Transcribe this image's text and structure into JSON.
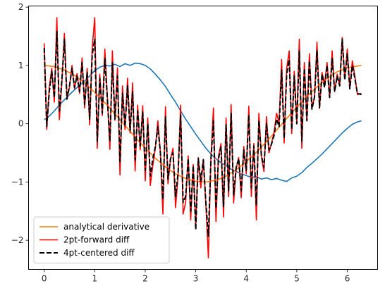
{
  "chart_data": {
    "type": "line",
    "title": "",
    "xlabel": "",
    "ylabel": "",
    "xlim": [
      -0.31,
      6.6
    ],
    "ylim": [
      -2.5,
      2.02
    ],
    "x_ticks": [
      0,
      1,
      2,
      3,
      4,
      5,
      6
    ],
    "y_ticks": [
      -2,
      -1,
      0,
      1,
      2
    ],
    "x_tick_labels": [
      "0",
      "1",
      "2",
      "3",
      "4",
      "5",
      "6"
    ],
    "y_tick_labels": [
      "−2",
      "−1",
      "0",
      "1",
      "2"
    ],
    "grid": false,
    "legend_position": "lower-left",
    "series": [
      {
        "name": "",
        "color": "#1f77b4",
        "dashed": false,
        "x": [
          0,
          0.1,
          0.2,
          0.3,
          0.4,
          0.5,
          0.6,
          0.7,
          0.8,
          0.9,
          1.0,
          1.1,
          1.2,
          1.3,
          1.4,
          1.5,
          1.6,
          1.7,
          1.8,
          1.9,
          2.0,
          2.1,
          2.2,
          2.3,
          2.4,
          2.5,
          2.6,
          2.7,
          2.8,
          2.9,
          3.0,
          3.1,
          3.2,
          3.3,
          3.4,
          3.5,
          3.6,
          3.7,
          3.8,
          3.9,
          4.0,
          4.1,
          4.2,
          4.3,
          4.4,
          4.5,
          4.6,
          4.7,
          4.8,
          4.9,
          5.0,
          5.1,
          5.2,
          5.3,
          5.4,
          5.5,
          5.6,
          5.7,
          5.8,
          5.9,
          6.0,
          6.1,
          6.2,
          6.28
        ],
        "y": [
          0.07,
          0.13,
          0.22,
          0.32,
          0.41,
          0.5,
          0.58,
          0.66,
          0.73,
          0.82,
          0.91,
          0.97,
          1.0,
          0.99,
          1.02,
          0.98,
          1.03,
          1.0,
          1.04,
          1.03,
          1.0,
          0.94,
          0.85,
          0.75,
          0.64,
          0.5,
          0.37,
          0.22,
          0.08,
          -0.05,
          -0.18,
          -0.3,
          -0.42,
          -0.52,
          -0.6,
          -0.67,
          -0.72,
          -0.78,
          -0.82,
          -0.86,
          -0.89,
          -0.92,
          -0.91,
          -0.95,
          -0.93,
          -0.96,
          -0.94,
          -0.97,
          -0.99,
          -0.93,
          -0.9,
          -0.84,
          -0.75,
          -0.68,
          -0.6,
          -0.52,
          -0.43,
          -0.34,
          -0.25,
          -0.16,
          -0.08,
          -0.01,
          0.03,
          0.05
        ]
      },
      {
        "name": "analytical derivative",
        "color": "#ff7f0e",
        "dashed": false,
        "x": [
          0,
          0.2,
          0.4,
          0.6,
          0.8,
          1.0,
          1.2,
          1.4,
          1.6,
          1.8,
          2.0,
          2.2,
          2.4,
          2.6,
          2.8,
          3.0,
          3.2,
          3.4,
          3.6,
          3.8,
          4.0,
          4.2,
          4.4,
          4.6,
          4.8,
          5.0,
          5.2,
          5.4,
          5.6,
          5.8,
          6.0,
          6.28
        ],
        "y": [
          1.0,
          0.98,
          0.92,
          0.83,
          0.7,
          0.54,
          0.36,
          0.17,
          -0.03,
          -0.23,
          -0.42,
          -0.59,
          -0.74,
          -0.86,
          -0.94,
          -0.99,
          -1.0,
          -0.97,
          -0.9,
          -0.79,
          -0.65,
          -0.49,
          -0.31,
          -0.11,
          0.09,
          0.28,
          0.47,
          0.63,
          0.78,
          0.89,
          0.96,
          1.0
        ]
      },
      {
        "name": "2pt-forward diff",
        "color": "#ff0000",
        "dashed": false,
        "x": [
          0,
          0.05,
          0.1,
          0.15,
          0.2,
          0.25,
          0.3,
          0.35,
          0.4,
          0.45,
          0.5,
          0.55,
          0.6,
          0.65,
          0.7,
          0.75,
          0.8,
          0.85,
          0.9,
          0.95,
          1.0,
          1.05,
          1.1,
          1.15,
          1.2,
          1.25,
          1.3,
          1.35,
          1.4,
          1.45,
          1.5,
          1.55,
          1.6,
          1.65,
          1.7,
          1.75,
          1.8,
          1.85,
          1.9,
          1.95,
          2.0,
          2.05,
          2.1,
          2.15,
          2.2,
          2.25,
          2.3,
          2.35,
          2.4,
          2.45,
          2.5,
          2.55,
          2.6,
          2.65,
          2.7,
          2.75,
          2.8,
          2.85,
          2.9,
          2.95,
          3.0,
          3.05,
          3.1,
          3.15,
          3.2,
          3.25,
          3.3,
          3.35,
          3.4,
          3.45,
          3.5,
          3.55,
          3.6,
          3.65,
          3.7,
          3.75,
          3.8,
          3.85,
          3.9,
          3.95,
          4.0,
          4.05,
          4.1,
          4.15,
          4.2,
          4.25,
          4.3,
          4.35,
          4.4,
          4.45,
          4.5,
          4.55,
          4.6,
          4.65,
          4.7,
          4.75,
          4.8,
          4.85,
          4.9,
          4.95,
          5.0,
          5.05,
          5.1,
          5.15,
          5.2,
          5.25,
          5.3,
          5.35,
          5.4,
          5.45,
          5.5,
          5.55,
          5.6,
          5.65,
          5.7,
          5.75,
          5.8,
          5.85,
          5.9,
          5.95,
          6.0,
          6.05,
          6.1,
          6.15,
          6.2,
          6.28
        ],
        "y": [
          1.38,
          -0.1,
          0.62,
          0.95,
          0.37,
          1.82,
          0.07,
          0.72,
          1.55,
          0.44,
          0.62,
          1.0,
          0.6,
          0.86,
          0.52,
          1.13,
          0.27,
          0.95,
          -0.02,
          1.3,
          1.82,
          -0.42,
          0.85,
          0.14,
          1.28,
          0.47,
          -0.44,
          1.25,
          0.06,
          0.96,
          -0.88,
          0.65,
          -0.1,
          0.78,
          -0.16,
          0.7,
          -0.81,
          0.32,
          -0.45,
          0.31,
          -0.98,
          0.1,
          -1.06,
          -0.72,
          -0.42,
          0.05,
          -0.49,
          -1.55,
          0.29,
          -1.03,
          -0.61,
          -0.42,
          -1.44,
          -0.9,
          0.32,
          -1.55,
          -1.35,
          -0.55,
          -1.65,
          -0.7,
          -1.74,
          -0.58,
          -1.1,
          -0.61,
          -1.38,
          -2.3,
          -0.6,
          0.27,
          -1.68,
          -0.56,
          -0.34,
          -1.6,
          0.1,
          -1.25,
          0.33,
          -1.36,
          -0.77,
          -0.58,
          -1.27,
          -0.39,
          -0.86,
          0.3,
          -1.25,
          -0.34,
          -1.65,
          0.18,
          -0.57,
          -0.82,
          0.12,
          -0.5,
          -0.33,
          -0.15,
          0.18,
          0.02,
          1.1,
          -0.33,
          0.95,
          1.25,
          -0.17,
          0.9,
          0.03,
          1.45,
          -0.42,
          1.05,
          0.05,
          1.2,
          0.28,
          0.45,
          1.4,
          0.26,
          0.88,
          0.68,
          1.05,
          0.45,
          1.25,
          0.55,
          0.85,
          0.65,
          1.48,
          0.77,
          1.28,
          0.6,
          1.08,
          0.82,
          0.5,
          0.52
        ]
      },
      {
        "name": "4pt-centered diff",
        "color": "#000000",
        "dashed": true,
        "x": [
          0,
          0.05,
          0.1,
          0.15,
          0.2,
          0.25,
          0.3,
          0.35,
          0.4,
          0.45,
          0.5,
          0.55,
          0.6,
          0.65,
          0.7,
          0.75,
          0.8,
          0.85,
          0.9,
          0.95,
          1.0,
          1.05,
          1.1,
          1.15,
          1.2,
          1.25,
          1.3,
          1.35,
          1.4,
          1.45,
          1.5,
          1.55,
          1.6,
          1.65,
          1.7,
          1.75,
          1.8,
          1.85,
          1.9,
          1.95,
          2.0,
          2.05,
          2.1,
          2.15,
          2.2,
          2.25,
          2.3,
          2.35,
          2.4,
          2.45,
          2.5,
          2.55,
          2.6,
          2.65,
          2.7,
          2.75,
          2.8,
          2.85,
          2.9,
          2.95,
          3.0,
          3.05,
          3.1,
          3.15,
          3.2,
          3.25,
          3.3,
          3.35,
          3.4,
          3.45,
          3.5,
          3.55,
          3.6,
          3.65,
          3.7,
          3.75,
          3.8,
          3.85,
          3.9,
          3.95,
          4.0,
          4.05,
          4.1,
          4.15,
          4.2,
          4.25,
          4.3,
          4.35,
          4.4,
          4.45,
          4.5,
          4.55,
          4.6,
          4.65,
          4.7,
          4.75,
          4.8,
          4.85,
          4.9,
          4.95,
          5.0,
          5.05,
          5.1,
          5.15,
          5.2,
          5.25,
          5.3,
          5.35,
          5.4,
          5.45,
          5.5,
          5.55,
          5.6,
          5.65,
          5.7,
          5.75,
          5.8,
          5.85,
          5.9,
          5.95,
          6.0,
          6.05,
          6.1,
          6.15,
          6.2,
          6.28
        ],
        "y": [
          1.3,
          -0.05,
          0.55,
          0.9,
          0.45,
          1.58,
          0.22,
          0.75,
          1.45,
          0.42,
          0.65,
          0.95,
          0.62,
          0.82,
          0.55,
          1.05,
          0.33,
          0.88,
          0.08,
          1.18,
          1.45,
          -0.3,
          0.78,
          0.18,
          1.12,
          0.42,
          -0.3,
          1.05,
          0.08,
          0.82,
          -0.65,
          0.52,
          -0.05,
          0.65,
          -0.12,
          0.55,
          -0.62,
          0.22,
          -0.38,
          0.2,
          -0.8,
          0.0,
          -0.9,
          -0.6,
          -0.4,
          -0.05,
          -0.5,
          -1.3,
          0.12,
          -0.95,
          -0.6,
          -0.5,
          -1.25,
          -0.85,
          0.15,
          -1.35,
          -1.25,
          -0.6,
          -1.5,
          -0.72,
          -1.82,
          -0.6,
          -0.98,
          -0.62,
          -1.35,
          -1.93,
          -0.62,
          0.05,
          -1.45,
          -0.6,
          -0.4,
          -1.42,
          -0.02,
          -1.15,
          0.18,
          -1.22,
          -0.75,
          -0.6,
          -1.15,
          -0.45,
          -0.8,
          0.15,
          -1.1,
          -0.38,
          -1.4,
          0.05,
          -0.55,
          -0.75,
          0.0,
          -0.45,
          -0.35,
          -0.2,
          0.08,
          -0.05,
          0.92,
          -0.25,
          0.85,
          1.1,
          -0.1,
          0.82,
          0.0,
          1.25,
          -0.3,
          0.95,
          0.05,
          1.08,
          0.25,
          0.45,
          1.25,
          0.28,
          0.85,
          0.62,
          1.0,
          0.45,
          1.12,
          0.55,
          0.82,
          0.65,
          1.45,
          0.75,
          1.2,
          0.6,
          1.0,
          0.78,
          0.52,
          0.5
        ]
      }
    ]
  }
}
